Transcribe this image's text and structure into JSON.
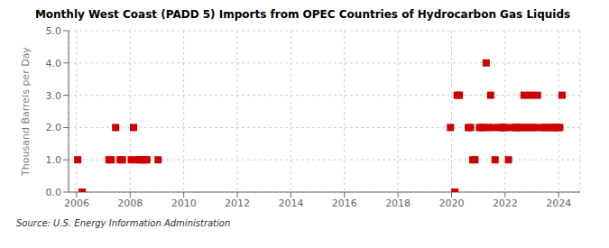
{
  "chart_data": {
    "type": "scatter",
    "title": "Monthly West Coast (PADD 5) Imports from OPEC Countries of Hydrocarbon Gas Liquids",
    "ylabel": "Thousand Barrels per Day",
    "annotations": [
      "Source: U.S. Energy Information Administration"
    ],
    "marker": "square",
    "color": "#cc0000",
    "grid": true,
    "xlim": [
      2005.7,
      2024.8
    ],
    "xticks": [
      2006,
      2008,
      2010,
      2012,
      2014,
      2016,
      2018,
      2020,
      2022,
      2024
    ],
    "ylim": [
      0.0,
      5.0
    ],
    "yticks": [
      {
        "value": 0.0,
        "label": "0.0"
      },
      {
        "value": 1.0,
        "label": "1.0"
      },
      {
        "value": 2.0,
        "label": "2.0"
      },
      {
        "value": 3.0,
        "label": "3.0"
      },
      {
        "value": 4.0,
        "label": "4.0"
      },
      {
        "value": 5.0,
        "label": "5.0"
      }
    ],
    "x": [
      2006.0416666666667,
      2006.2083333333333,
      2007.2083333333333,
      2007.2916666666667,
      2007.4583333333333,
      2007.625,
      2007.7083333333333,
      2008.0416666666667,
      2008.125,
      2008.2916666666667,
      2008.375,
      2008.4583333333333,
      2008.5416666666667,
      2008.625,
      2009.0416666666667,
      2019.9583333333333,
      2020.125,
      2020.2083333333333,
      2020.2916666666667,
      2020.625,
      2020.7083333333333,
      2020.7916666666667,
      2020.875,
      2021.0416666666667,
      2021.125,
      2021.2083333333333,
      2021.2916666666667,
      2021.375,
      2021.4583333333333,
      2021.5416666666667,
      2021.625,
      2021.7916666666667,
      2021.875,
      2021.9583333333333,
      2022.0416666666667,
      2022.125,
      2022.2916666666667,
      2022.375,
      2022.4583333333333,
      2022.5416666666667,
      2022.625,
      2022.7083333333333,
      2022.7916666666667,
      2022.875,
      2022.9583333333333,
      2023.0416666666667,
      2023.125,
      2023.2083333333333,
      2023.375,
      2023.4583333333333,
      2023.5416666666667,
      2023.7083333333333,
      2023.7916666666667,
      2023.875,
      2023.9583333333333,
      2024.0416666666667,
      2024.125
    ],
    "values": [
      1,
      0,
      1,
      1,
      2,
      1,
      1,
      1,
      2,
      1,
      1,
      1,
      1,
      1,
      1,
      2,
      0,
      3,
      3,
      2,
      2,
      1,
      1,
      2,
      2,
      2,
      4,
      2,
      3,
      2,
      1,
      2,
      2,
      2,
      2,
      1,
      2,
      2,
      2,
      2,
      2,
      3,
      2,
      2,
      3,
      2,
      2,
      3,
      2,
      2,
      2,
      2,
      2,
      2,
      2,
      2,
      3
    ]
  }
}
